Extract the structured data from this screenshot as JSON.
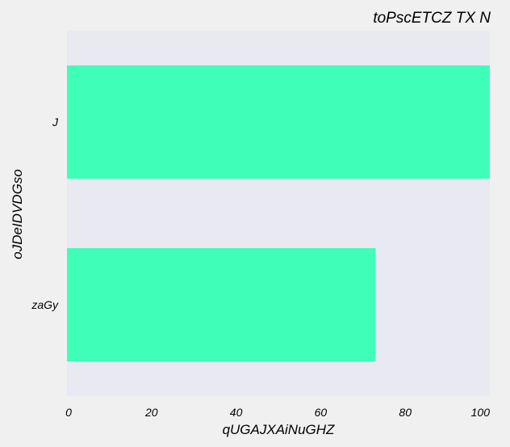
{
  "chart_data": {
    "type": "bar",
    "orientation": "horizontal",
    "title": "toPscETCZ TX N",
    "title_position": "right",
    "xlabel": "qUGAJXAiNuGHZ",
    "ylabel": "oJDeIDVDGso",
    "categories": [
      "J",
      "zaGy"
    ],
    "values": [
      100,
      73
    ],
    "xlim": [
      0,
      100
    ],
    "xticks": [
      0,
      20,
      40,
      60,
      80,
      100
    ],
    "grid": false,
    "bar_color": "#3fffb8",
    "plot_background": "#e9e9f2",
    "figure_background": "#f0f0f0"
  }
}
